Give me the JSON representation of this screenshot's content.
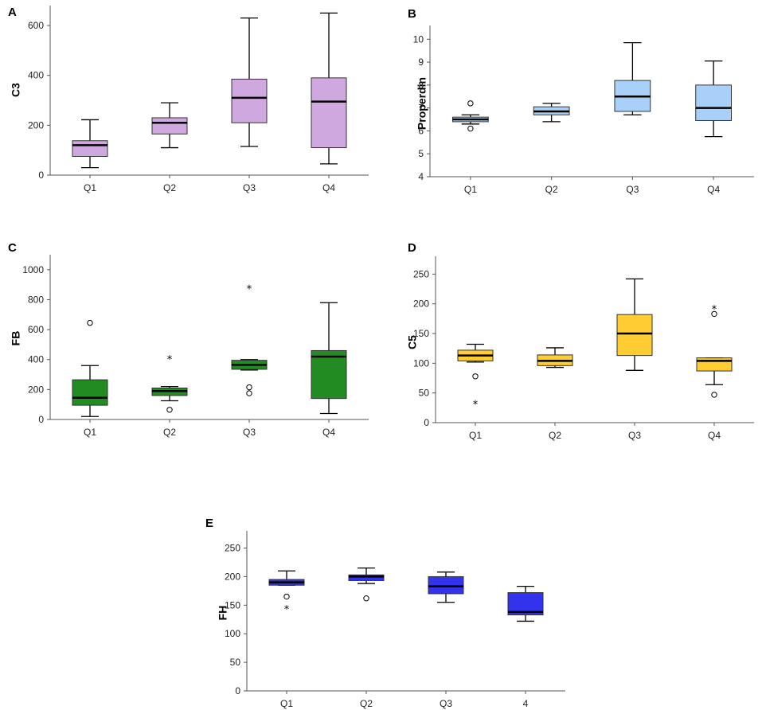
{
  "chart_data": [
    {
      "panel": "A",
      "type": "box",
      "ylabel": "C3",
      "color": "#d0a8e0",
      "yticks": [
        0,
        200,
        400,
        600
      ],
      "ylim": [
        0,
        680
      ],
      "categories": [
        "Q1",
        "Q2",
        "Q3",
        "Q4"
      ],
      "boxes": [
        {
          "min": 30,
          "q1": 75,
          "median": 120,
          "q3": 138,
          "max": 222,
          "outliers": [],
          "extremes": []
        },
        {
          "min": 110,
          "q1": 165,
          "median": 210,
          "q3": 230,
          "max": 290,
          "outliers": [],
          "extremes": []
        },
        {
          "min": 115,
          "q1": 210,
          "median": 310,
          "q3": 385,
          "max": 630,
          "outliers": [],
          "extremes": []
        },
        {
          "min": 45,
          "q1": 110,
          "median": 295,
          "q3": 390,
          "max": 650,
          "outliers": [],
          "extremes": []
        }
      ]
    },
    {
      "panel": "B",
      "type": "box",
      "ylabel": "Properdin",
      "color": "#a8d0f8",
      "yticks": [
        4,
        5,
        6,
        7,
        8,
        9,
        10
      ],
      "ylim": [
        4,
        10.6
      ],
      "categories": [
        "Q1",
        "Q2",
        "Q3",
        "Q4"
      ],
      "boxes": [
        {
          "min": 6.3,
          "q1": 6.4,
          "median": 6.5,
          "q3": 6.6,
          "max": 6.7,
          "outliers": [
            6.1,
            7.2
          ],
          "extremes": []
        },
        {
          "min": 6.4,
          "q1": 6.7,
          "median": 6.85,
          "q3": 7.05,
          "max": 7.2,
          "outliers": [],
          "extremes": []
        },
        {
          "min": 6.7,
          "q1": 6.85,
          "median": 7.5,
          "q3": 8.2,
          "max": 9.85,
          "outliers": [],
          "extremes": []
        },
        {
          "min": 5.75,
          "q1": 6.45,
          "median": 7.0,
          "q3": 8.0,
          "max": 9.05,
          "outliers": [],
          "extremes": []
        }
      ]
    },
    {
      "panel": "C",
      "type": "box",
      "ylabel": "FB",
      "color": "#228b22",
      "yticks": [
        0,
        200,
        400,
        600,
        800,
        1000
      ],
      "ylim": [
        0,
        1100
      ],
      "categories": [
        "Q1",
        "Q2",
        "Q3",
        "Q4"
      ],
      "boxes": [
        {
          "min": 20,
          "q1": 95,
          "median": 145,
          "q3": 265,
          "max": 360,
          "outliers": [
            645
          ],
          "extremes": []
        },
        {
          "min": 125,
          "q1": 160,
          "median": 190,
          "q3": 210,
          "max": 220,
          "outliers": [
            65
          ],
          "extremes": [
            410
          ]
        },
        {
          "min": 330,
          "q1": 335,
          "median": 365,
          "q3": 395,
          "max": 400,
          "outliers": [
            175,
            215
          ],
          "extremes": [
            880
          ]
        },
        {
          "min": 40,
          "q1": 140,
          "median": 420,
          "q3": 460,
          "max": 780,
          "outliers": [],
          "extremes": []
        }
      ]
    },
    {
      "panel": "D",
      "type": "box",
      "ylabel": "C5",
      "color": "#ffcc33",
      "yticks": [
        0,
        50,
        100,
        150,
        200,
        250
      ],
      "ylim": [
        0,
        280
      ],
      "categories": [
        "Q1",
        "Q2",
        "Q3",
        "Q4"
      ],
      "boxes": [
        {
          "min": 102,
          "q1": 104,
          "median": 113,
          "q3": 122,
          "max": 132,
          "outliers": [
            78
          ],
          "extremes": [
            33
          ]
        },
        {
          "min": 93,
          "q1": 96,
          "median": 104,
          "q3": 114,
          "max": 126,
          "outliers": [],
          "extremes": []
        },
        {
          "min": 88,
          "q1": 113,
          "median": 150,
          "q3": 182,
          "max": 242,
          "outliers": [],
          "extremes": []
        },
        {
          "min": 64,
          "q1": 87,
          "median": 104,
          "q3": 109,
          "max": 109,
          "outliers": [
            47,
            183
          ],
          "extremes": [
            193
          ]
        }
      ]
    },
    {
      "panel": "E",
      "type": "box",
      "ylabel": "FH",
      "color": "#3333ee",
      "yticks": [
        0,
        50,
        100,
        150,
        200,
        250
      ],
      "ylim": [
        0,
        280
      ],
      "categories": [
        "Q1",
        "Q2",
        "Q3",
        "4"
      ],
      "boxes": [
        {
          "min": 185,
          "q1": 185,
          "median": 190,
          "q3": 195,
          "max": 210,
          "outliers": [
            165
          ],
          "extremes": [
            145
          ]
        },
        {
          "min": 188,
          "q1": 193,
          "median": 200,
          "q3": 203,
          "max": 215,
          "outliers": [
            162
          ],
          "extremes": []
        },
        {
          "min": 155,
          "q1": 170,
          "median": 183,
          "q3": 200,
          "max": 208,
          "outliers": [],
          "extremes": []
        },
        {
          "min": 122,
          "q1": 133,
          "median": 138,
          "q3": 172,
          "max": 183,
          "outliers": [],
          "extremes": []
        }
      ]
    }
  ]
}
